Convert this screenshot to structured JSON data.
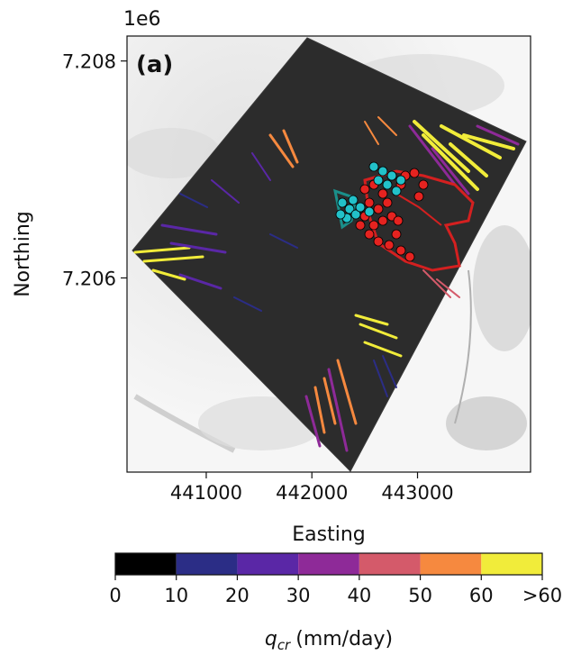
{
  "chart_data": {
    "type": "map",
    "panel_label": "(a)",
    "xlabel": "Easting",
    "ylabel": "Northing",
    "y_offset_text": "1e6",
    "x_ticks": [
      441000,
      442000,
      443000
    ],
    "x_tick_labels": [
      "441000",
      "442000",
      "443000"
    ],
    "y_ticks": [
      7.206,
      7.208
    ],
    "y_tick_labels": [
      "7.206",
      "7.208"
    ],
    "xlim": [
      440250,
      444070
    ],
    "ylim": [
      7.20421,
      7.20823
    ],
    "colorbar": {
      "label_symbol": "q",
      "label_subscript": "cr",
      "label_units": "(mm/day)",
      "bins": [
        0,
        10,
        20,
        30,
        40,
        50,
        60
      ],
      "tick_labels": [
        "0",
        "10",
        "20",
        "30",
        "40",
        "50",
        "60",
        ">60"
      ],
      "colors": [
        "#000000",
        "#2b2d86",
        "#5a27a6",
        "#8e2a98",
        "#d45a6a",
        "#f6893f",
        "#f1ec3a"
      ]
    },
    "colors": {
      "domain": "#2c2c2c",
      "red_markers": "#e52320",
      "cyan_markers": "#22c1c9",
      "red_outline": "#d42020",
      "teal_outline": "#1a8f8a"
    }
  }
}
